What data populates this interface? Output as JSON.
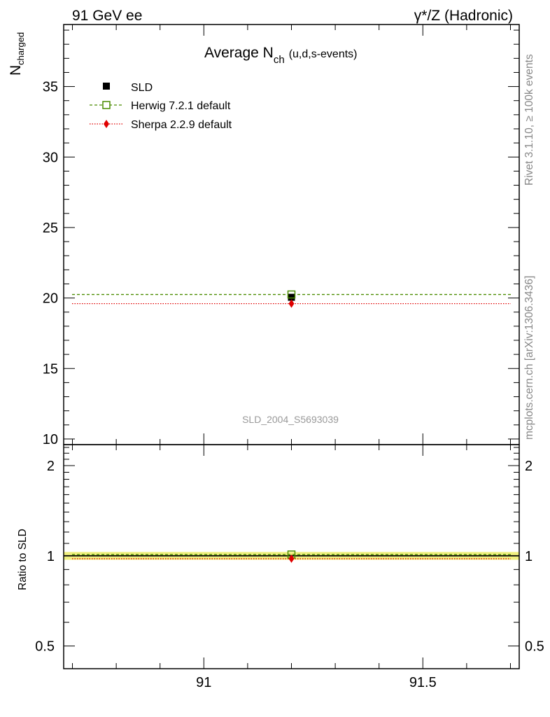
{
  "header": {
    "left": "91 GeV ee",
    "right": "γ*/Z (Hadronic)"
  },
  "side_labels": {
    "rivet": "Rivet 3.1.10, ≥ 100k events",
    "mcplots": "mcplots.cern.ch [arXiv:1306.3436]"
  },
  "watermark": "SLD_2004_S5693039",
  "chart_data": [
    {
      "type": "scatter",
      "title_main": "Average N",
      "title_sub": "ch",
      "title_suffix": "(u,d,s-events)",
      "ylabel_main": "N",
      "ylabel_sub": "charged",
      "xlim": [
        90.68,
        91.72
      ],
      "ylim": [
        9.6,
        39.4
      ],
      "yticks": [
        10,
        15,
        20,
        25,
        30,
        35
      ],
      "ytick_labels": [
        "10",
        "15",
        "20",
        "25",
        "30",
        "35"
      ],
      "legend_position": "top-left",
      "series": [
        {
          "name": "SLD",
          "x": [
            91.2
          ],
          "y": [
            20.05
          ],
          "color": "#000000",
          "marker": "filled-square",
          "style": "none"
        },
        {
          "name": "Herwig 7.2.1 default",
          "x": [
            91.2
          ],
          "y": [
            20.25
          ],
          "color": "#4a8c00",
          "marker": "open-square",
          "style": "dashed"
        },
        {
          "name": "Sherpa 2.2.9 default",
          "x": [
            91.2
          ],
          "y": [
            19.6
          ],
          "color": "#e00000",
          "marker": "diamond",
          "style": "dotted"
        }
      ]
    },
    {
      "type": "scatter",
      "ylabel": "Ratio to SLD",
      "log_y": true,
      "xlim": [
        90.68,
        91.72
      ],
      "ylim": [
        0.42,
        2.35
      ],
      "xticks": [
        91,
        91.5
      ],
      "xtick_labels": [
        "91",
        "91.5"
      ],
      "yticks": [
        0.5,
        1,
        2
      ],
      "ytick_labels": [
        "0.5",
        "1",
        "2"
      ],
      "band": {
        "lower": 0.97,
        "upper": 1.03,
        "color": "#f0f080"
      },
      "series": [
        {
          "name": "SLD",
          "x": [
            91.2
          ],
          "y": [
            1.0
          ],
          "color": "#000000",
          "style": "solid"
        },
        {
          "name": "Herwig 7.2.1 default",
          "x": [
            91.2
          ],
          "y": [
            1.01
          ],
          "color": "#4a8c00",
          "style": "dashed"
        },
        {
          "name": "Sherpa 2.2.9 default",
          "x": [
            91.2
          ],
          "y": [
            0.978
          ],
          "color": "#e00000",
          "style": "dotted"
        }
      ]
    }
  ]
}
